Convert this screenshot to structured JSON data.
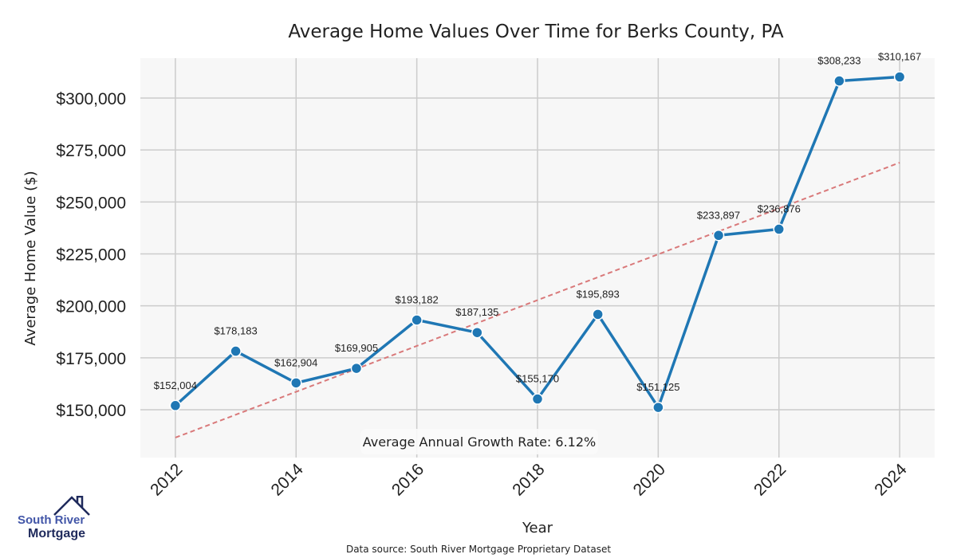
{
  "chart_data": {
    "type": "line",
    "title": "Average Home Values Over Time for Berks County, PA",
    "xlabel": "Year",
    "ylabel": "Average Home Value ($)",
    "x": [
      2012,
      2013,
      2014,
      2015,
      2016,
      2017,
      2018,
      2019,
      2020,
      2021,
      2022,
      2023,
      2024
    ],
    "series": [
      {
        "name": "Average Home Value",
        "values": [
          152004,
          178183,
          162904,
          169905,
          193182,
          187135,
          155170,
          195893,
          151125,
          233897,
          236876,
          308233,
          310167
        ],
        "labels": [
          "$152,004",
          "$178,183",
          "$162,904",
          "$169,905",
          "$193,182",
          "$187,135",
          "$155,170",
          "$195,893",
          "$151,125",
          "$233,897",
          "$236,876",
          "$308,233",
          "$310,167"
        ],
        "color": "#1f77b4"
      }
    ],
    "trendline": {
      "x": [
        2012,
        2024
      ],
      "y": [
        136574,
        268926
      ],
      "color": "#d9797a",
      "style": "dashed"
    },
    "xlim": [
      2011.42,
      2024.58
    ],
    "ylim": [
      126982,
      319182
    ],
    "xticks": [
      2012,
      2014,
      2016,
      2018,
      2020,
      2022,
      2024
    ],
    "xtick_labels": [
      "2012",
      "2014",
      "2016",
      "2018",
      "2020",
      "2022",
      "2024"
    ],
    "yticks": [
      150000,
      175000,
      200000,
      225000,
      250000,
      275000,
      300000
    ],
    "ytick_labels": [
      "$150,000",
      "$175,000",
      "$200,000",
      "$225,000",
      "$250,000",
      "$275,000",
      "$300,000"
    ],
    "grid": true,
    "annotation": "Average Annual Growth Rate: 6.12%",
    "source": "Data source: South River Mortgage Proprietary Dataset"
  },
  "logo": {
    "line1": "South River",
    "line2": "Mortgage"
  }
}
